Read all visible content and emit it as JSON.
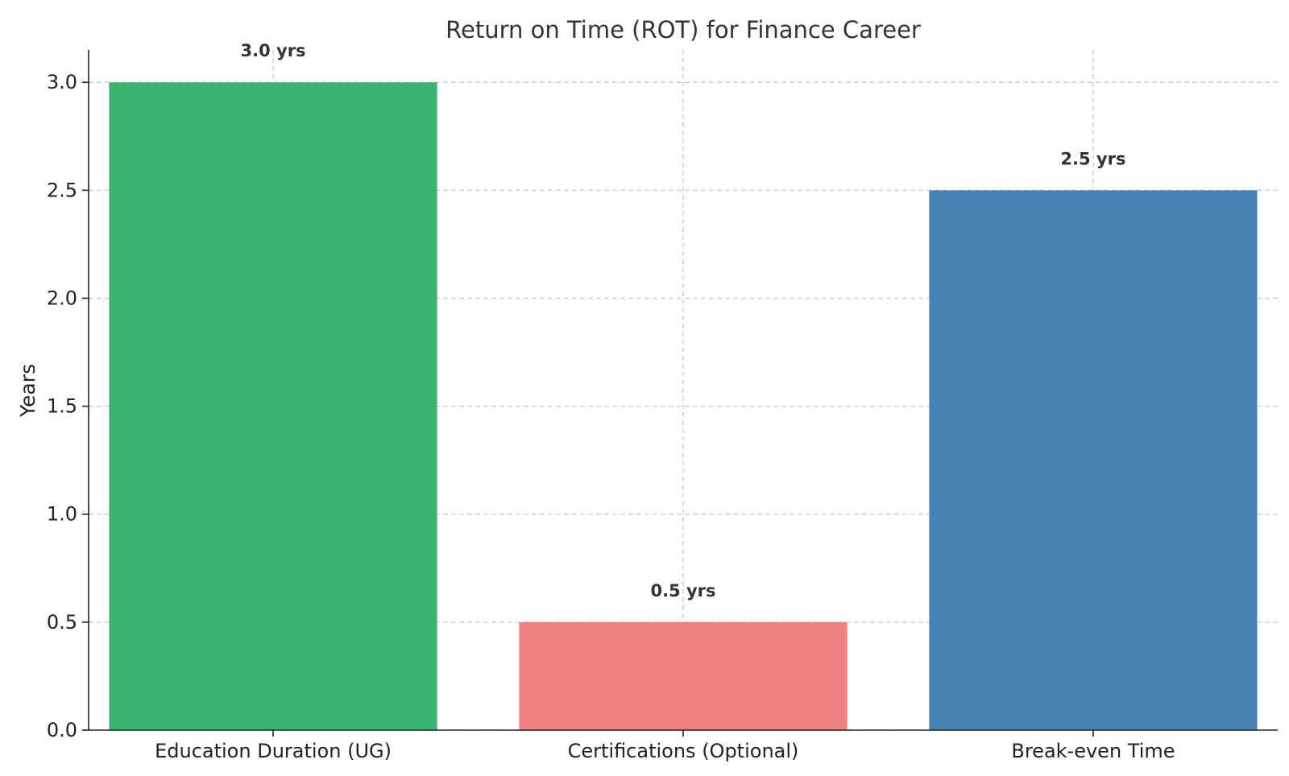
{
  "chart_data": {
    "type": "bar",
    "title": "Return on Time (ROT) for Finance Career",
    "xlabel": "",
    "ylabel": "Years",
    "categories": [
      "Education Duration (UG)",
      "Certifications (Optional)",
      "Break-even Time"
    ],
    "values": [
      3.0,
      0.5,
      2.5
    ],
    "data_labels": [
      "3.0 yrs",
      "0.5 yrs",
      "2.5 yrs"
    ],
    "colors": [
      "#3cb371",
      "#f08080",
      "#4682b4"
    ],
    "ylim": [
      0,
      3.15
    ],
    "yticks": [
      0.0,
      0.5,
      1.0,
      1.5,
      2.0,
      2.5,
      3.0
    ],
    "ytick_labels": [
      "0.0",
      "0.5",
      "1.0",
      "1.5",
      "2.0",
      "2.5",
      "3.0"
    ],
    "grid": true,
    "legend": "none"
  }
}
